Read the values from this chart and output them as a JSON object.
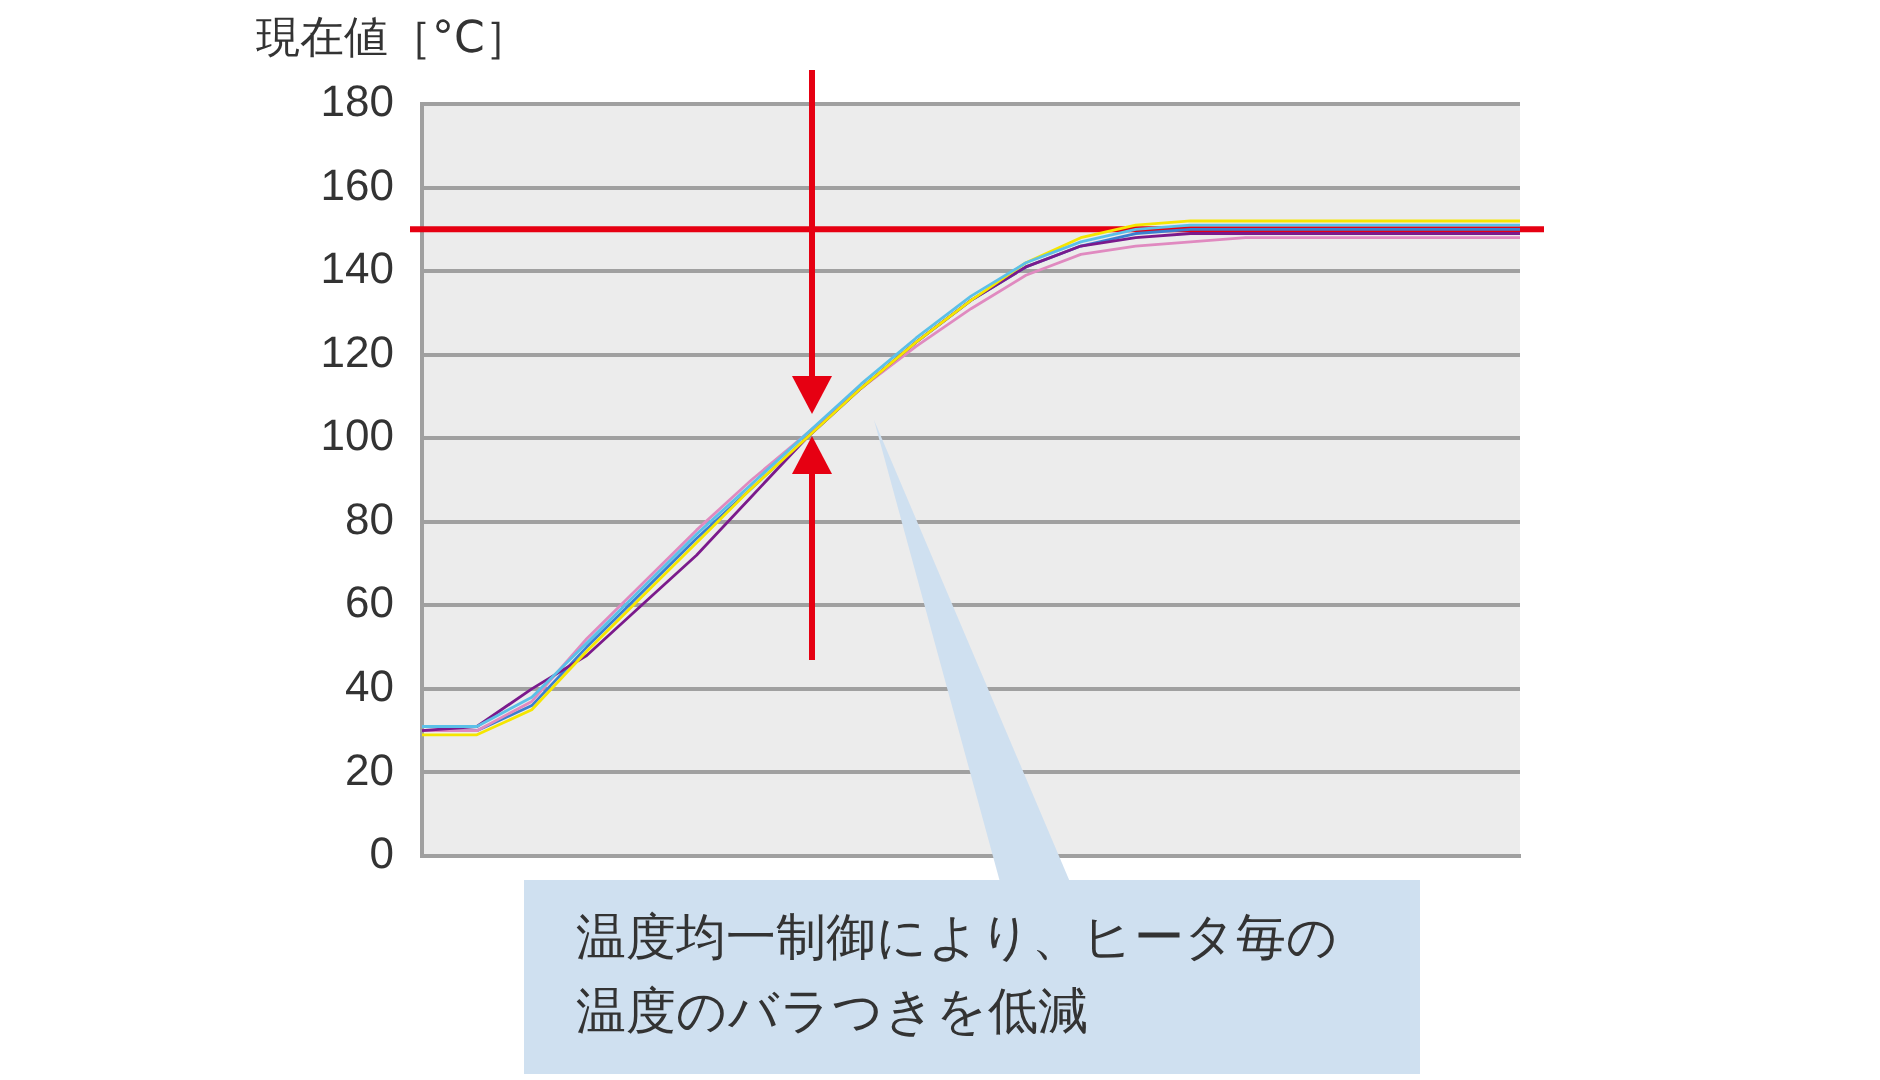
{
  "chart_data": {
    "type": "line",
    "ylabel": "現在値［°C］",
    "categories": [
      null,
      null,
      null,
      null,
      null,
      null,
      null,
      null,
      null,
      null,
      null,
      null,
      null,
      null,
      null,
      null,
      null,
      null,
      null,
      null,
      null
    ],
    "series": [
      {
        "color": "#5bc0e8",
        "values": [
          31,
          31,
          38,
          51,
          64,
          77,
          89,
          101,
          113,
          124,
          134,
          142,
          147,
          150,
          151,
          151,
          151,
          151,
          151,
          151,
          151
        ]
      },
      {
        "color": "#f5e600",
        "values": [
          29,
          29,
          35,
          49,
          62,
          75,
          88,
          100,
          112,
          123,
          133,
          142,
          148,
          151,
          152,
          152,
          152,
          152,
          152,
          152,
          152
        ]
      },
      {
        "color": "#7b1a8c",
        "values": [
          30,
          31,
          40,
          48,
          60,
          72,
          86,
          100,
          112,
          123,
          133,
          141,
          146,
          148,
          149,
          149,
          149,
          149,
          149,
          149,
          149
        ]
      },
      {
        "color": "#e08ac0",
        "values": [
          30,
          30,
          37,
          52,
          65,
          78,
          90,
          101,
          112,
          122,
          131,
          139,
          144,
          146,
          147,
          148,
          148,
          148,
          148,
          148,
          148
        ]
      },
      {
        "color": "#3a7fd0",
        "values": [
          30,
          30,
          36,
          50,
          63,
          76,
          88,
          100,
          112,
          123,
          133,
          141,
          146,
          149,
          150,
          150,
          150,
          150,
          150,
          150,
          150
        ]
      }
    ],
    "ylim": [
      0,
      180
    ],
    "yticks": [
      0,
      20,
      40,
      60,
      80,
      100,
      120,
      140,
      160,
      180
    ],
    "grid": "y",
    "tick_labels": "y",
    "ref_lines": [
      {
        "axis": "y",
        "value": 150,
        "color": "#e60012"
      }
    ],
    "annotations": [
      "温度均一制御により、ヒータ毎の温度のバラつきを低減"
    ]
  }
}
